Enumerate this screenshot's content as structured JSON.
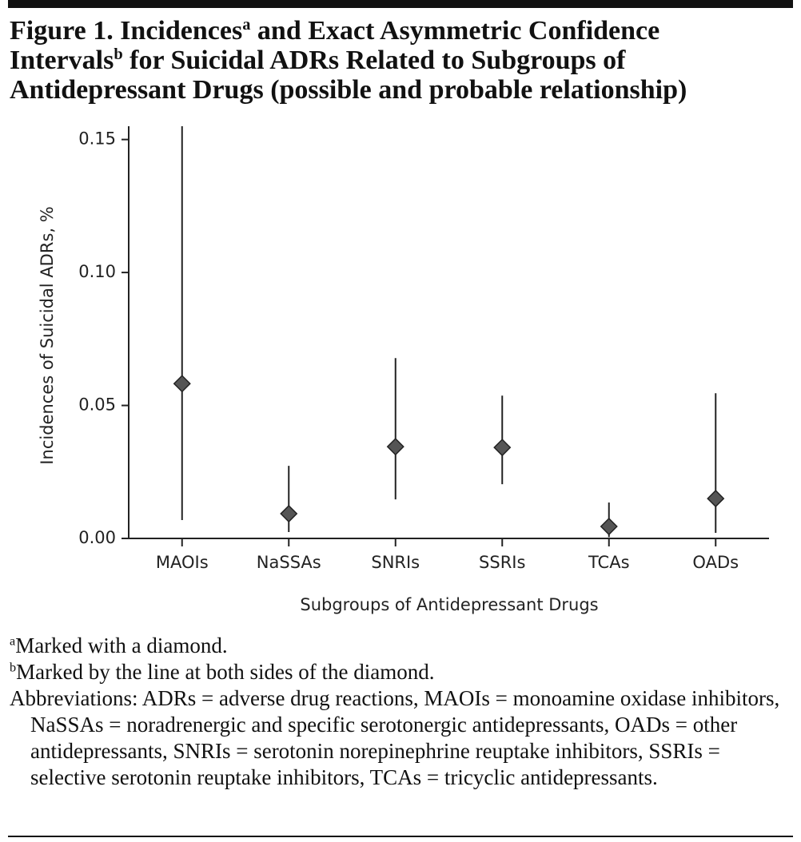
{
  "chart_data": {
    "type": "errorbar",
    "title": [
      "Figure 1. Incidences",
      "a",
      "and Exact Asymmetric Confidence Intervals",
      "b",
      "for Suicidal ADRs Related to Subgroups of Antidepressant Drugs (possible and probable relationship)"
    ],
    "x_label": "Subgroups of Antidepressant Drugs",
    "y_label": "Incidences of Suicidal ADRs, %",
    "categories": [
      "MAOIs",
      "NaSSAs",
      "SNRIs",
      "SSRIs",
      "TCAs",
      "OADs"
    ],
    "values": [
      0.0582,
      0.0093,
      0.0345,
      0.0342,
      0.0045,
      0.015
    ],
    "ci_lower": [
      0.0069,
      0.0024,
      0.0147,
      0.0204,
      0.0005,
      0.0021
    ],
    "ci_upper": [
      0.155,
      0.0273,
      0.0678,
      0.0537,
      0.0135,
      0.0546
    ],
    "color": "#555555",
    "ylim": [
      0,
      0.155
    ],
    "yticks": [
      {
        "value": 0,
        "label": "0.00"
      },
      {
        "value": 0.05,
        "label": "0.05"
      },
      {
        "value": 0.1,
        "label": "0.10"
      },
      {
        "value": 0.15,
        "label": "0.15"
      }
    ],
    "notes": [
      {
        "mark": "a",
        "text": "Marked with a diamond."
      },
      {
        "mark": "b",
        "text": "Marked by the line at both sides of the diamond."
      }
    ],
    "abbreviations": "Abbreviations: ADRs = adverse drug reactions, MAOIs = monoamine oxidase inhibitors, NaSSAs = noradrenergic and specific serotonergic antidepressants, OADs = other antidepressants, SNRIs = serotonin norepinephrine reuptake inhibitors, SSRIs = selective serotonin reuptake inhibitors, TCAs = tricyclic antidepressants."
  }
}
